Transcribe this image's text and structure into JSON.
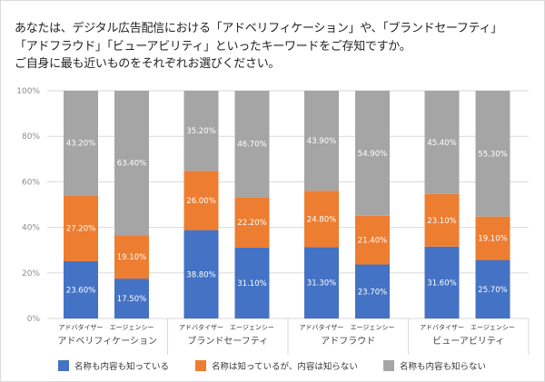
{
  "question": {
    "lines": [
      "あなたは、デジタル広告配信における「アドベリフィケーション」や、「ブランドセーフティ」",
      "「アドフラウド」「ビューアビリティ」といったキーワードをご存知ですか。",
      "ご自身に最も近いものをそれぞれお選びください。"
    ]
  },
  "chart_data": {
    "type": "bar",
    "stacked": true,
    "percent_stacked": true,
    "title": "",
    "xlabel": "",
    "ylabel": "",
    "ylim": [
      0,
      100
    ],
    "y_ticks": [
      "0%",
      "20%",
      "40%",
      "60%",
      "80%",
      "100%"
    ],
    "grid": true,
    "legend_position": "bottom",
    "groups": [
      {
        "name": "アドベリフィケーション",
        "bars": [
          "アドバタイザー",
          "エージェンシー"
        ]
      },
      {
        "name": "ブランドセーフティ",
        "bars": [
          "アドバタイザー",
          "エージェンシー"
        ]
      },
      {
        "name": "アドフラウド",
        "bars": [
          "アドバタイザー",
          "エージェンシー"
        ]
      },
      {
        "name": "ビューアビリティ",
        "bars": [
          "アドバタイザー",
          "エージェンシー"
        ]
      }
    ],
    "categories": [
      "アドベリフィケーション / アドバタイザー",
      "アドベリフィケーション / エージェンシー",
      "ブランドセーフティ / アドバタイザー",
      "ブランドセーフティ / エージェンシー",
      "アドフラウド / アドバタイザー",
      "アドフラウド / エージェンシー",
      "ビューアビリティ / アドバタイザー",
      "ビューアビリティ / エージェンシー"
    ],
    "series": [
      {
        "name": "名称も内容も知っている",
        "color": "#4472c4",
        "values": [
          23.6,
          17.5,
          38.8,
          31.1,
          31.3,
          23.7,
          31.6,
          25.7
        ],
        "labels": [
          "23.60%",
          "17.50%",
          "38.80%",
          "31.10%",
          "31.30%",
          "23.70%",
          "31.60%",
          "25.70%"
        ]
      },
      {
        "name": "名称は知っているが、内容は知らない",
        "color": "#ed7d31",
        "values": [
          27.2,
          19.1,
          26.0,
          22.2,
          24.8,
          21.4,
          23.1,
          19.1
        ],
        "labels": [
          "27.20%",
          "19.10%",
          "26.00%",
          "22.20%",
          "24.80%",
          "21.40%",
          "23.10%",
          "19.10%"
        ]
      },
      {
        "name": "名称も内容も知らない",
        "color": "#a5a5a5",
        "values": [
          43.2,
          63.4,
          35.2,
          46.7,
          43.9,
          54.9,
          45.4,
          55.3
        ],
        "labels": [
          "43.20%",
          "63.40%",
          "35.20%",
          "46.70%",
          "43.90%",
          "54.90%",
          "45.40%",
          "55.30%"
        ]
      }
    ]
  }
}
